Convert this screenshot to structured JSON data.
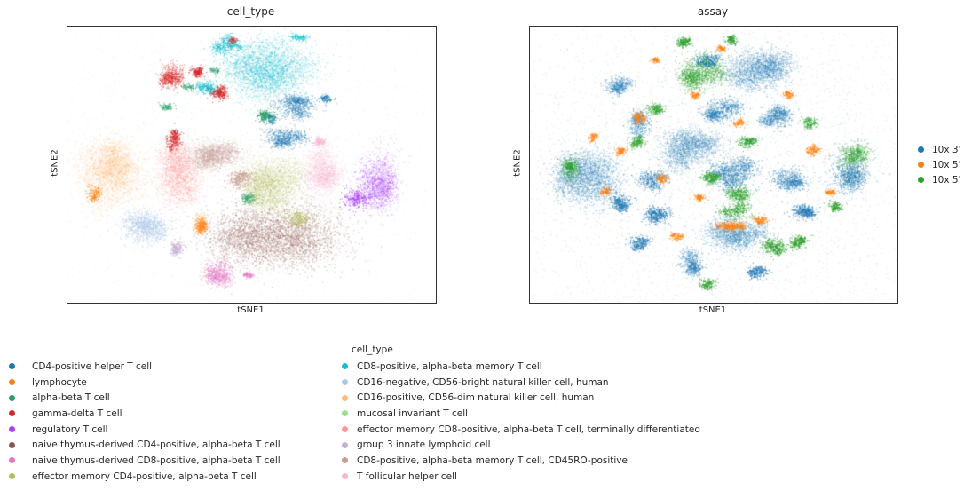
{
  "accent_colors": {
    "figure_background": "#ffffff",
    "axes_spine": "#333333",
    "text": "#262626"
  },
  "assay_legend": {
    "items": [
      {
        "label": "10x 3'",
        "color": "#1f77b4"
      },
      {
        "label": "10x 5'",
        "color": "#ff7f0e"
      },
      {
        "label": "10x 5'",
        "color": "#2ca02c"
      }
    ],
    "note": "labels clipped at right image edge"
  },
  "cell_type_legend": {
    "title": "cell_type",
    "col1": [
      {
        "label": "CD4-positive helper T cell",
        "color": "#1f77b4"
      },
      {
        "label": "lymphocyte",
        "color": "#ff7f0e"
      },
      {
        "label": "alpha-beta T cell",
        "color": "#279e68"
      },
      {
        "label": "gamma-delta T cell",
        "color": "#d62728"
      },
      {
        "label": "regulatory T cell",
        "color": "#aa40fc"
      },
      {
        "label": "naive thymus-derived CD4-positive, alpha-beta T cell",
        "color": "#8c564b"
      },
      {
        "label": "naive thymus-derived CD8-positive, alpha-beta T cell",
        "color": "#e377c2"
      },
      {
        "label": "effector memory CD4-positive, alpha-beta T cell",
        "color": "#b5bd61"
      }
    ],
    "col2": [
      {
        "label": "CD8-positive, alpha-beta memory T cell",
        "color": "#17becf"
      },
      {
        "label": "CD16-negative, CD56-bright natural killer cell, human",
        "color": "#aec7e8"
      },
      {
        "label": "CD16-positive, CD56-dim natural killer cell, human",
        "color": "#ffbb78"
      },
      {
        "label": "mucosal invariant T cell",
        "color": "#98df8a"
      },
      {
        "label": "effector memory CD8-positive, alpha-beta T cell, terminally differentiated",
        "color": "#ff9896"
      },
      {
        "label": "group 3 innate lymphoid cell",
        "color": "#c5b0d5"
      },
      {
        "label": "CD8-positive, alpha-beta memory T cell, CD45RO-positive",
        "color": "#c49c94"
      },
      {
        "label": "T follicular helper cell",
        "color": "#f7b6d2"
      }
    ]
  },
  "chart_data": [
    {
      "type": "scatter",
      "title": "cell_type",
      "xlabel": "tSNE1",
      "ylabel": "tSNE2",
      "axes": "t-SNE embedding, no tick marks or tick labels, black box spines",
      "legend_position": "below figure, two columns",
      "clusters": [
        {
          "group": "CD8-positive, alpha-beta memory T cell",
          "color": "#17becf",
          "blobs": [
            [
              0.545,
              0.155,
              0.115,
              0.105,
              3200
            ],
            [
              0.43,
              0.07,
              0.035,
              0.03,
              350
            ],
            [
              0.38,
              0.225,
              0.03,
              0.025,
              250
            ],
            [
              0.63,
              0.04,
              0.02,
              0.015,
              120
            ]
          ]
        },
        {
          "group": "CD4-positive helper T cell",
          "color": "#1f77b4",
          "blobs": [
            [
              0.62,
              0.29,
              0.055,
              0.035,
              700
            ],
            [
              0.585,
              0.4,
              0.05,
              0.035,
              650
            ],
            [
              0.7,
              0.265,
              0.018,
              0.015,
              100
            ],
            [
              0.55,
              0.33,
              0.02,
              0.018,
              120
            ]
          ]
        },
        {
          "group": "alpha-beta T cell",
          "color": "#279e68",
          "blobs": [
            [
              0.545,
              0.325,
              0.025,
              0.022,
              220
            ],
            [
              0.5,
              0.62,
              0.022,
              0.02,
              160
            ],
            [
              0.27,
              0.29,
              0.018,
              0.015,
              90
            ],
            [
              0.33,
              0.22,
              0.015,
              0.012,
              70
            ],
            [
              0.4,
              0.16,
              0.012,
              0.012,
              60
            ]
          ]
        },
        {
          "group": "gamma-delta T cell",
          "color": "#d62728",
          "blobs": [
            [
              0.285,
              0.175,
              0.032,
              0.042,
              600
            ],
            [
              0.35,
              0.165,
              0.02,
              0.018,
              200
            ],
            [
              0.41,
              0.24,
              0.022,
              0.022,
              250
            ],
            [
              0.29,
              0.41,
              0.02,
              0.035,
              300
            ],
            [
              0.45,
              0.05,
              0.012,
              0.012,
              60
            ]
          ]
        },
        {
          "group": "regulatory T cell",
          "color": "#aa40fc",
          "blobs": [
            [
              0.85,
              0.55,
              0.05,
              0.105,
              1500
            ],
            [
              0.78,
              0.63,
              0.04,
              0.04,
              300
            ]
          ]
        },
        {
          "group": "naive thymus-derived CD4-positive, alpha-beta T cell",
          "color": "#8c564b",
          "blobs": [
            [
              0.585,
              0.765,
              0.16,
              0.115,
              4200
            ]
          ]
        },
        {
          "group": "naive thymus-derived CD8-positive, alpha-beta T cell",
          "color": "#e377c2",
          "blobs": [
            [
              0.41,
              0.885,
              0.035,
              0.05,
              700
            ],
            [
              0.49,
              0.9,
              0.012,
              0.012,
              80
            ]
          ]
        },
        {
          "group": "effector memory CD4-positive, alpha-beta T cell",
          "color": "#b5bd61",
          "blobs": [
            [
              0.565,
              0.565,
              0.075,
              0.1,
              2400
            ],
            [
              0.62,
              0.7,
              0.03,
              0.025,
              200
            ]
          ]
        },
        {
          "group": "T follicular helper cell",
          "color": "#f7b6d2",
          "blobs": [
            [
              0.69,
              0.53,
              0.055,
              0.08,
              1600
            ],
            [
              0.685,
              0.42,
              0.02,
              0.018,
              150
            ]
          ]
        },
        {
          "group": "CD16-positive, CD56-dim natural killer cell, human",
          "color": "#ffbb78",
          "blobs": [
            [
              0.125,
              0.535,
              0.085,
              0.115,
              2600
            ]
          ]
        },
        {
          "group": "lymphocyte",
          "color": "#ff7f0e",
          "blobs": [
            [
              0.36,
              0.72,
              0.018,
              0.035,
              400
            ],
            [
              0.07,
              0.6,
              0.02,
              0.03,
              150
            ]
          ]
        },
        {
          "group": "effector memory CD8-positive, alpha-beta T cell, terminally differentiated",
          "color": "#ff9896",
          "blobs": [
            [
              0.3,
              0.53,
              0.06,
              0.1,
              2000
            ]
          ]
        },
        {
          "group": "CD16-negative, CD56-bright natural killer cell, human",
          "color": "#aec7e8",
          "blobs": [
            [
              0.21,
              0.73,
              0.07,
              0.055,
              1200
            ]
          ]
        },
        {
          "group": "group 3 innate lymphoid cell",
          "color": "#c5b0d5",
          "blobs": [
            [
              0.3,
              0.8,
              0.017,
              0.028,
              220
            ]
          ]
        },
        {
          "group": "CD8-positive, alpha-beta memory T cell, CD45RO-positive",
          "color": "#c49c94",
          "blobs": [
            [
              0.405,
              0.47,
              0.075,
              0.05,
              1800
            ],
            [
              0.47,
              0.56,
              0.04,
              0.03,
              300
            ]
          ]
        },
        {
          "group": "background scatter",
          "color": "#b0b0b0",
          "blobs": [
            [
              0.47,
              0.48,
              0.4,
              0.4,
              2600,
              1
            ]
          ]
        }
      ]
    },
    {
      "type": "scatter",
      "title": "assay",
      "xlabel": "tSNE1",
      "ylabel": "tSNE2",
      "axes": "t-SNE embedding, no tick marks or tick labels, black box spines",
      "legend_position": "right of axes",
      "clusters": [
        {
          "group": "10x 3'",
          "color": "#1f77b4",
          "blobs": [
            [
              0.165,
              0.55,
              0.085,
              0.1,
              2600
            ],
            [
              0.24,
              0.21,
              0.035,
              0.03,
              400
            ],
            [
              0.43,
              0.44,
              0.075,
              0.065,
              1800
            ],
            [
              0.52,
              0.3,
              0.045,
              0.04,
              700
            ],
            [
              0.615,
              0.155,
              0.085,
              0.075,
              2200
            ],
            [
              0.67,
              0.33,
              0.04,
              0.035,
              600
            ],
            [
              0.56,
              0.53,
              0.06,
              0.05,
              1000
            ],
            [
              0.7,
              0.55,
              0.045,
              0.04,
              600
            ],
            [
              0.56,
              0.76,
              0.075,
              0.06,
              1600
            ],
            [
              0.44,
              0.86,
              0.035,
              0.045,
              500
            ],
            [
              0.35,
              0.68,
              0.035,
              0.03,
              350
            ],
            [
              0.295,
              0.78,
              0.025,
              0.025,
              250
            ],
            [
              0.87,
              0.52,
              0.055,
              0.075,
              900
            ],
            [
              0.74,
              0.67,
              0.035,
              0.03,
              350
            ],
            [
              0.62,
              0.89,
              0.03,
              0.025,
              250
            ],
            [
              0.33,
              0.55,
              0.04,
              0.035,
              450
            ],
            [
              0.25,
              0.64,
              0.03,
              0.028,
              300
            ],
            [
              0.48,
              0.12,
              0.03,
              0.025,
              300
            ],
            [
              0.3,
              0.35,
              0.035,
              0.04,
              400
            ],
            [
              0.5,
              0.5,
              0.4,
              0.4,
              3000,
              1
            ]
          ]
        },
        {
          "group": "10x 5' (green)",
          "color": "#2ca02c",
          "blobs": [
            [
              0.47,
              0.16,
              0.055,
              0.06,
              1200
            ],
            [
              0.42,
              0.06,
              0.022,
              0.018,
              200
            ],
            [
              0.55,
              0.05,
              0.018,
              0.015,
              150
            ],
            [
              0.88,
              0.47,
              0.045,
              0.05,
              600
            ],
            [
              0.57,
              0.6,
              0.03,
              0.025,
              300
            ],
            [
              0.49,
              0.55,
              0.025,
              0.02,
              250
            ],
            [
              0.66,
              0.8,
              0.03,
              0.03,
              350
            ],
            [
              0.73,
              0.78,
              0.025,
              0.022,
              250
            ],
            [
              0.11,
              0.52,
              0.025,
              0.04,
              300
            ],
            [
              0.34,
              0.3,
              0.022,
              0.02,
              200
            ],
            [
              0.29,
              0.42,
              0.02,
              0.02,
              180
            ],
            [
              0.59,
              0.42,
              0.025,
              0.02,
              220
            ],
            [
              0.48,
              0.93,
              0.022,
              0.018,
              180
            ],
            [
              0.76,
              0.35,
              0.02,
              0.018,
              150
            ],
            [
              0.83,
              0.65,
              0.022,
              0.02,
              160
            ],
            [
              0.56,
              0.67,
              0.04,
              0.03,
              300
            ],
            [
              0.5,
              0.5,
              0.4,
              0.4,
              1500,
              1
            ]
          ]
        },
        {
          "group": "10x 5' (orange)",
          "color": "#ff7f0e",
          "blobs": [
            [
              0.3,
              0.33,
              0.015,
              0.02,
              150
            ],
            [
              0.25,
              0.45,
              0.015,
              0.015,
              120
            ],
            [
              0.205,
              0.6,
              0.013,
              0.015,
              100
            ],
            [
              0.36,
              0.55,
              0.015,
              0.015,
              120
            ],
            [
              0.46,
              0.62,
              0.015,
              0.013,
              110
            ],
            [
              0.55,
              0.72,
              0.035,
              0.02,
              350
            ],
            [
              0.63,
              0.7,
              0.02,
              0.015,
              140
            ],
            [
              0.77,
              0.45,
              0.018,
              0.02,
              160
            ],
            [
              0.7,
              0.25,
              0.015,
              0.013,
              110
            ],
            [
              0.45,
              0.25,
              0.013,
              0.013,
              90
            ],
            [
              0.52,
              0.08,
              0.013,
              0.012,
              90
            ],
            [
              0.4,
              0.76,
              0.015,
              0.014,
              110
            ],
            [
              0.82,
              0.6,
              0.015,
              0.015,
              110
            ],
            [
              0.57,
              0.35,
              0.015,
              0.013,
              100
            ],
            [
              0.34,
              0.12,
              0.012,
              0.012,
              80
            ],
            [
              0.17,
              0.4,
              0.012,
              0.015,
              90
            ],
            [
              0.5,
              0.5,
              0.38,
              0.38,
              700,
              1
            ]
          ]
        }
      ]
    }
  ]
}
